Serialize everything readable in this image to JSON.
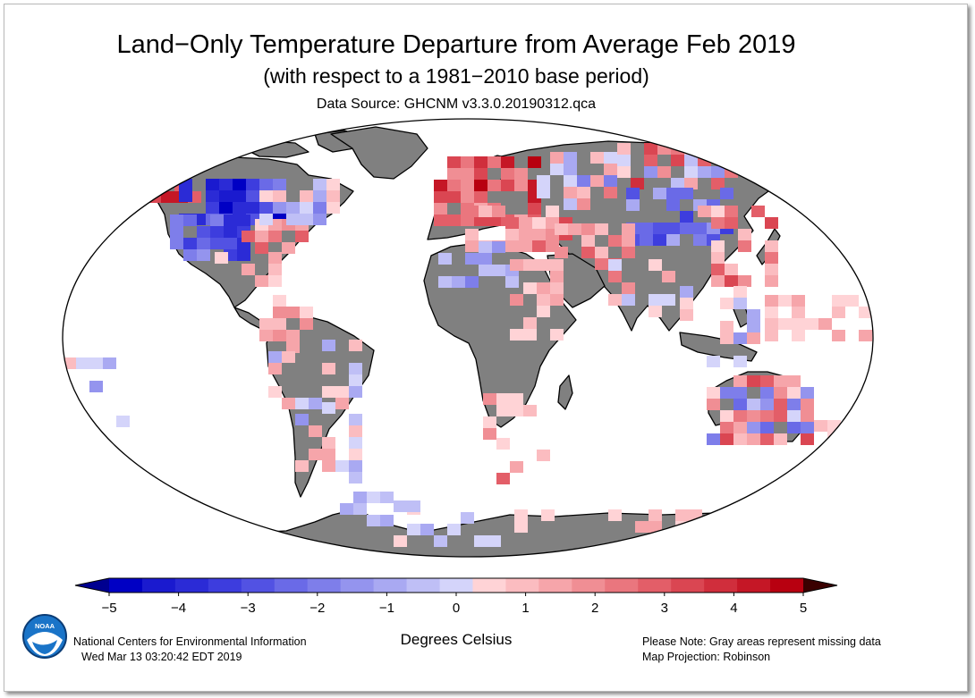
{
  "title": "Land−Only Temperature Departure from Average Feb 2019",
  "subtitle": "(with respect to a 1981−2010 base period)",
  "source": "Data Source: GHCNM v3.3.0.20190312.qca",
  "colorbar": {
    "ticks": [
      "−5",
      "−4",
      "−3",
      "−2",
      "−1",
      "0",
      "1",
      "2",
      "3",
      "4",
      "5"
    ],
    "units": "Degrees Celsius",
    "colors": [
      "#0000c4",
      "#1a1acf",
      "#2b2bd6",
      "#3d3dde",
      "#5252e3",
      "#6a6ae7",
      "#7e7eea",
      "#9494ee",
      "#a9a9f2",
      "#bfbff6",
      "#d4d4fa",
      "#ffd3d6",
      "#fbbcc0",
      "#f6a5aa",
      "#f08e94",
      "#ea767e",
      "#e35e68",
      "#da4652",
      "#d02e3c",
      "#c51726",
      "#b80010"
    ],
    "under_color": "#000090",
    "over_color": "#3a0000"
  },
  "legend_colors": {
    "missing": "#808080"
  },
  "logo": {
    "text": "NOAA"
  },
  "footer": {
    "org": "National Centers for Environmental Information",
    "timestamp": "Wed Mar 13 03:20:42 EDT 2019",
    "note": "Please Note: Gray areas represent missing data",
    "projection": "Map Projection: Robinson"
  }
}
